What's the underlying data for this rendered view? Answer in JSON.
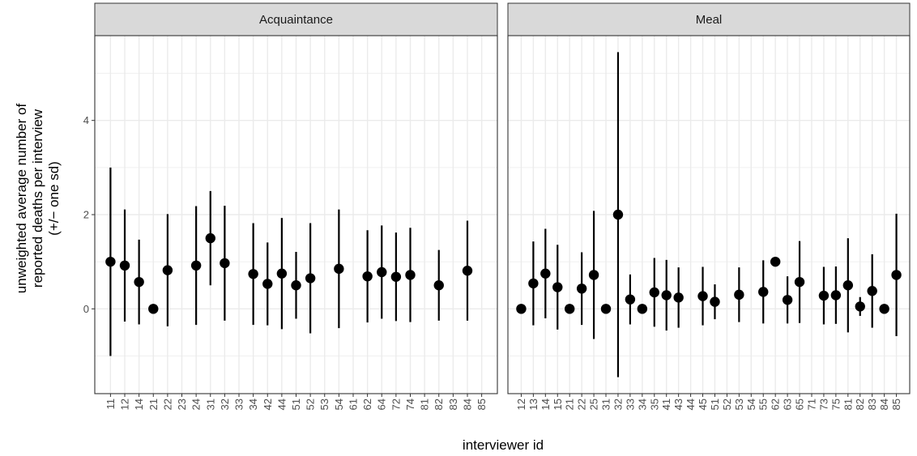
{
  "chart_data": {
    "type": "scatter",
    "subtype": "pointrange",
    "xlabel": "interviewer id",
    "ylabel_lines": [
      "unweighted average number of",
      "reported deaths per interview",
      "(+/− one sd)"
    ],
    "ylim": [
      -1.8,
      5.8
    ],
    "yticks": [
      0,
      2,
      4
    ],
    "grid": true,
    "legend": "none",
    "colors": {
      "point": "#000000",
      "panel_border": "#333333",
      "grid": "#ebebeb",
      "strip_fill": "#d9d9d9"
    },
    "panels": [
      {
        "title": "Acquaintance",
        "categories": [
          "11",
          "12",
          "14",
          "21",
          "22",
          "23",
          "24",
          "31",
          "32",
          "33",
          "34",
          "42",
          "44",
          "51",
          "52",
          "53",
          "54",
          "61",
          "62",
          "64",
          "72",
          "74",
          "81",
          "82",
          "83",
          "84",
          "85"
        ],
        "points": [
          {
            "x": "11",
            "y": 1.0,
            "lo": -1.0,
            "hi": 3.0
          },
          {
            "x": "12",
            "y": 0.92,
            "lo": -0.27,
            "hi": 2.11
          },
          {
            "x": "14",
            "y": 0.57,
            "lo": -0.33,
            "hi": 1.47
          },
          {
            "x": "21",
            "y": 0.0
          },
          {
            "x": "22",
            "y": 0.82,
            "lo": -0.37,
            "hi": 2.01
          },
          {
            "x": "24",
            "y": 0.92,
            "lo": -0.34,
            "hi": 2.18
          },
          {
            "x": "31",
            "y": 1.5,
            "lo": 0.5,
            "hi": 2.5
          },
          {
            "x": "32",
            "y": 0.97,
            "lo": -0.25,
            "hi": 2.19
          },
          {
            "x": "34",
            "y": 0.74,
            "lo": -0.34,
            "hi": 1.82
          },
          {
            "x": "42",
            "y": 0.53,
            "lo": -0.35,
            "hi": 1.41
          },
          {
            "x": "44",
            "y": 0.75,
            "lo": -0.43,
            "hi": 1.93
          },
          {
            "x": "51",
            "y": 0.5,
            "lo": -0.21,
            "hi": 1.21
          },
          {
            "x": "52",
            "y": 0.65,
            "lo": -0.52,
            "hi": 1.82
          },
          {
            "x": "54",
            "y": 0.85,
            "lo": -0.41,
            "hi": 2.11
          },
          {
            "x": "62",
            "y": 0.69,
            "lo": -0.29,
            "hi": 1.67
          },
          {
            "x": "64",
            "y": 0.78,
            "lo": -0.21,
            "hi": 1.77
          },
          {
            "x": "72",
            "y": 0.68,
            "lo": -0.26,
            "hi": 1.62
          },
          {
            "x": "74",
            "y": 0.72,
            "lo": -0.28,
            "hi": 1.72
          },
          {
            "x": "82",
            "y": 0.5,
            "lo": -0.25,
            "hi": 1.25
          },
          {
            "x": "84",
            "y": 0.81,
            "lo": -0.25,
            "hi": 1.87
          }
        ]
      },
      {
        "title": "Meal",
        "categories": [
          "12",
          "13",
          "14",
          "15",
          "21",
          "22",
          "25",
          "31",
          "32",
          "33",
          "34",
          "35",
          "41",
          "43",
          "44",
          "45",
          "51",
          "52",
          "53",
          "54",
          "55",
          "62",
          "63",
          "65",
          "71",
          "73",
          "75",
          "81",
          "82",
          "83",
          "84",
          "85"
        ],
        "points": [
          {
            "x": "12",
            "y": 0.0
          },
          {
            "x": "13",
            "y": 0.54,
            "lo": -0.35,
            "hi": 1.43
          },
          {
            "x": "14",
            "y": 0.75,
            "lo": -0.2,
            "hi": 1.7
          },
          {
            "x": "15",
            "y": 0.46,
            "lo": -0.44,
            "hi": 1.36
          },
          {
            "x": "21",
            "y": 0.0
          },
          {
            "x": "22",
            "y": 0.43,
            "lo": -0.34,
            "hi": 1.2
          },
          {
            "x": "25",
            "y": 0.72,
            "lo": -0.64,
            "hi": 2.08
          },
          {
            "x": "31",
            "y": 0.0
          },
          {
            "x": "32",
            "y": 2.0,
            "lo": -1.45,
            "hi": 5.45
          },
          {
            "x": "33",
            "y": 0.2,
            "lo": -0.33,
            "hi": 0.73
          },
          {
            "x": "34",
            "y": 0.0
          },
          {
            "x": "35",
            "y": 0.35,
            "lo": -0.38,
            "hi": 1.08
          },
          {
            "x": "41",
            "y": 0.29,
            "lo": -0.46,
            "hi": 1.04
          },
          {
            "x": "43",
            "y": 0.24,
            "lo": -0.4,
            "hi": 0.88
          },
          {
            "x": "45",
            "y": 0.27,
            "lo": -0.35,
            "hi": 0.89
          },
          {
            "x": "51",
            "y": 0.15,
            "lo": -0.22,
            "hi": 0.52
          },
          {
            "x": "53",
            "y": 0.3,
            "lo": -0.28,
            "hi": 0.88
          },
          {
            "x": "55",
            "y": 0.36,
            "lo": -0.31,
            "hi": 1.03
          },
          {
            "x": "62",
            "y": 1.0
          },
          {
            "x": "63",
            "y": 0.19,
            "lo": -0.31,
            "hi": 0.69
          },
          {
            "x": "65",
            "y": 0.57,
            "lo": -0.3,
            "hi": 1.44
          },
          {
            "x": "73",
            "y": 0.28,
            "lo": -0.33,
            "hi": 0.89
          },
          {
            "x": "75",
            "y": 0.29,
            "lo": -0.32,
            "hi": 0.9
          },
          {
            "x": "81",
            "y": 0.5,
            "lo": -0.5,
            "hi": 1.5
          },
          {
            "x": "82",
            "y": 0.05,
            "lo": -0.15,
            "hi": 0.25
          },
          {
            "x": "83",
            "y": 0.38,
            "lo": -0.4,
            "hi": 1.16
          },
          {
            "x": "84",
            "y": 0.0
          },
          {
            "x": "85",
            "y": 0.72,
            "lo": -0.58,
            "hi": 2.02
          }
        ]
      }
    ]
  }
}
